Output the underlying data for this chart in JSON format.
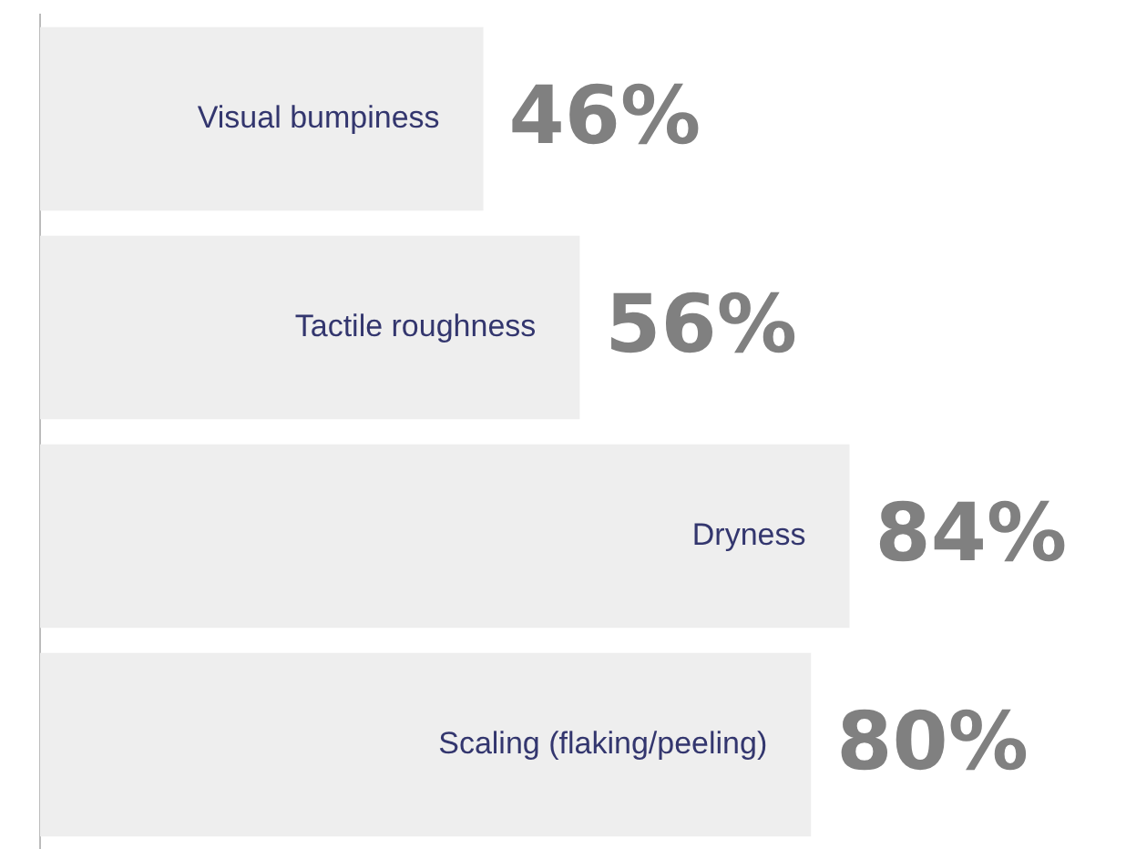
{
  "chart_data": {
    "type": "bar",
    "orientation": "horizontal",
    "categories": [
      "Visual bumpiness",
      "Tactile roughness",
      "Dryness",
      "Scaling (flaking/peeling)"
    ],
    "values": [
      46,
      56,
      84,
      80
    ],
    "value_labels": [
      "46%",
      "56%",
      "84%",
      "80%"
    ],
    "color": "#eeeeee"
  }
}
